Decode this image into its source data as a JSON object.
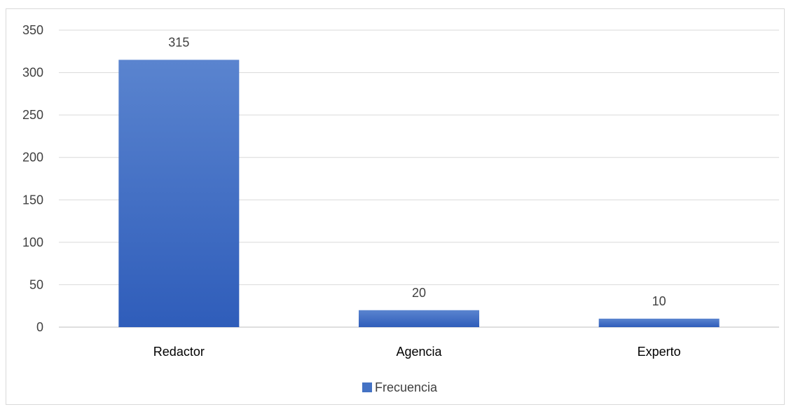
{
  "chart_data": {
    "type": "bar",
    "categories": [
      "Redactor",
      "Agencia",
      "Experto"
    ],
    "series": [
      {
        "name": "Frecuencia",
        "values": [
          315,
          20,
          10
        ],
        "color": "#4472c4"
      }
    ],
    "data_labels": [
      "315",
      "20",
      "10"
    ],
    "ylim": [
      0,
      350
    ],
    "yticks": [
      0,
      50,
      100,
      150,
      200,
      250,
      300,
      350
    ],
    "grid": true,
    "legend_position": "bottom",
    "title": "",
    "xlabel": "",
    "ylabel": ""
  }
}
